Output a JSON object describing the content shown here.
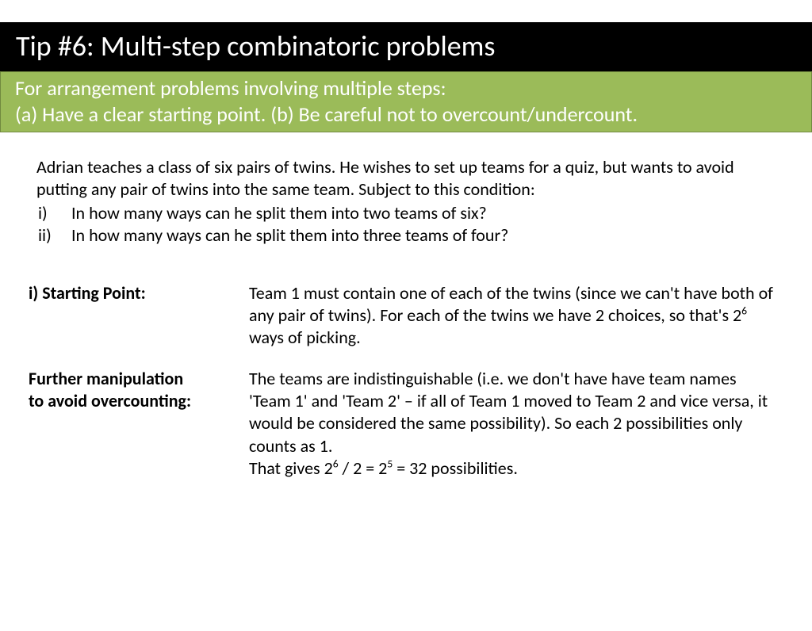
{
  "colors": {
    "title_bg": "#000000",
    "title_fg": "#ffffff",
    "subtitle_bg": "#9bbb59",
    "subtitle_border": "#71893f",
    "subtitle_fg": "#ffffff",
    "body_fg": "#000000",
    "page_bg": "#ffffff"
  },
  "title": "Tip #6: Multi-step combinatoric problems",
  "subtitle": {
    "line1": "For arrangement problems involving multiple steps:",
    "line2": "(a) Have a clear starting point.    (b) Be careful not to overcount/undercount."
  },
  "problem": {
    "intro": "Adrian teaches a class of six pairs of twins. He wishes to set up teams for a quiz, but wants to avoid putting any pair of twins into the same team. Subject to this condition:",
    "q1_num": "i)",
    "q1": "In how many ways can he split them into two teams of six?",
    "q2_num": "ii)",
    "q2": "In how many ways can he split them into three teams of four?"
  },
  "solution": {
    "row1": {
      "label": "i) Starting Point:",
      "body_before_sup": "Team 1 must contain one of each of the twins (since we can't have both of any pair of twins). For each of the twins we have 2 choices, so that's 2",
      "body_sup": "6",
      "body_after_sup": " ways of picking."
    },
    "row2": {
      "label1": "Further manipulation",
      "label2": "to avoid overcounting:",
      "body_main": "The teams are indistinguishable (i.e. we don't have have team names 'Team 1' and 'Team 2' – if all of Team 1 moved to Team 2 and vice versa, it would be considered the same possibility). So each 2 possibilities only counts as 1.",
      "last_a": "That gives 2",
      "last_sup1": "6",
      "last_b": " / 2    = 2",
      "last_sup2": "5",
      "last_c": "    = 32 possibilities."
    }
  }
}
